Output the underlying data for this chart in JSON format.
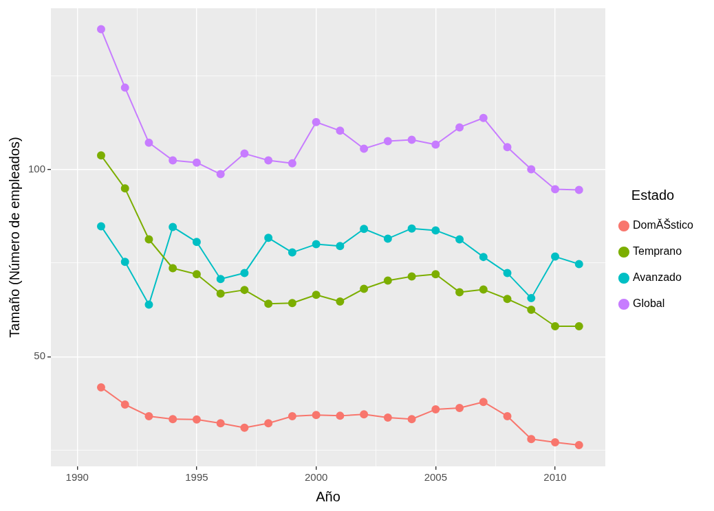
{
  "chart_data": {
    "type": "line",
    "xlabel": "Año",
    "ylabel": "Tamaño (Número de empleados)",
    "legend_title": "Estado",
    "legend": "right",
    "grid": true,
    "marker": "circle",
    "line_style": "solid",
    "x": [
      1991,
      1992,
      1993,
      1994,
      1995,
      1996,
      1997,
      1998,
      1999,
      2000,
      2001,
      2002,
      2003,
      2004,
      2005,
      2006,
      2007,
      2008,
      2009,
      2010,
      2011
    ],
    "xlim": [
      1988.9,
      2012.1
    ],
    "xticks": [
      1990,
      {
        "value": 1992.5,
        "label": null
      },
      1995,
      {
        "value": 1997.5,
        "label": null
      },
      2000,
      {
        "value": 2002.5,
        "label": null
      },
      2005,
      {
        "value": 2007.5,
        "label": null
      },
      2010
    ],
    "ylim": [
      20.7,
      143
    ],
    "yticks": [
      {
        "value": 25,
        "label": null
      },
      50,
      {
        "value": 75,
        "label": null
      },
      100,
      {
        "value": 125,
        "label": null
      }
    ],
    "series": [
      {
        "name": "DomĂŠstico",
        "color": "#f8766d",
        "values": [
          41.8,
          37.2,
          34.1,
          33.3,
          33.2,
          32.2,
          31.0,
          32.2,
          34.1,
          34.4,
          34.2,
          34.6,
          33.7,
          33.3,
          35.9,
          36.3,
          37.9,
          34.1,
          28.0,
          27.1,
          26.4
        ]
      },
      {
        "name": "Temprano",
        "color": "#7cae00",
        "values": [
          103.7,
          94.9,
          81.3,
          73.6,
          72.0,
          66.8,
          67.8,
          64.1,
          64.3,
          66.5,
          64.7,
          68.1,
          70.3,
          71.4,
          72.0,
          67.2,
          67.9,
          65.4,
          62.5,
          58.1,
          58.1
        ]
      },
      {
        "name": "Avanzado",
        "color": "#00bfc4",
        "values": [
          84.8,
          75.3,
          63.9,
          84.6,
          80.6,
          70.7,
          72.3,
          81.7,
          77.8,
          80.0,
          79.5,
          84.1,
          81.5,
          84.2,
          83.7,
          81.3,
          76.6,
          72.3,
          65.6,
          76.7,
          74.7
        ]
      },
      {
        "name": "Global",
        "color": "#c77cff",
        "values": [
          137.4,
          121.8,
          107.1,
          102.4,
          101.8,
          98.7,
          104.2,
          102.4,
          101.6,
          112.6,
          110.3,
          105.5,
          107.5,
          107.9,
          106.6,
          111.2,
          113.7,
          105.9,
          100.0,
          94.7,
          94.5
        ]
      }
    ]
  }
}
